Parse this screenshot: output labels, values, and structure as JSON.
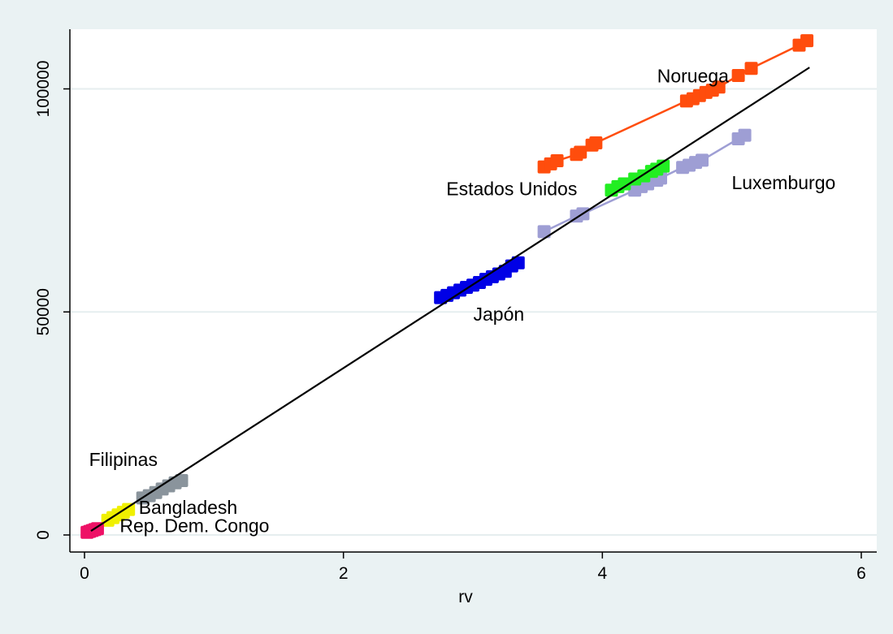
{
  "chart_data": {
    "type": "scatter",
    "title": "",
    "xlabel": "rv",
    "ylabel": "",
    "xlim": [
      -0.15,
      6.1
    ],
    "ylim": [
      -5000,
      113000
    ],
    "x_ticks": [
      0,
      2,
      4,
      6
    ],
    "y_ticks": [
      0,
      50000,
      100000
    ],
    "grid": "horizontal",
    "legend": "none",
    "colors": {
      "background": "#eaf2f3",
      "plot_background": "#ffffff",
      "gridline": "#e6eeef",
      "axis": "#000000"
    },
    "series": [
      {
        "color": "#ff4d0d",
        "connected": true,
        "points": [
          [
            3.55,
            82500
          ],
          [
            3.6,
            83200
          ],
          [
            3.65,
            83900
          ],
          [
            3.8,
            85300
          ],
          [
            3.83,
            85800
          ],
          [
            3.92,
            87400
          ],
          [
            3.95,
            87900
          ],
          [
            4.65,
            97300
          ],
          [
            4.7,
            97800
          ],
          [
            4.75,
            98500
          ],
          [
            4.8,
            99200
          ],
          [
            4.85,
            99700
          ],
          [
            4.9,
            100400
          ],
          [
            5.05,
            103000
          ],
          [
            5.15,
            104600
          ],
          [
            5.52,
            109800
          ],
          [
            5.58,
            110800
          ]
        ]
      },
      {
        "color": "#9e9ed4",
        "connected": true,
        "points": [
          [
            3.55,
            68000
          ],
          [
            3.8,
            71500
          ],
          [
            3.85,
            72000
          ],
          [
            4.25,
            77300
          ],
          [
            4.3,
            78100
          ],
          [
            4.35,
            78700
          ],
          [
            4.42,
            79500
          ],
          [
            4.45,
            80000
          ],
          [
            4.62,
            82400
          ],
          [
            4.67,
            82900
          ],
          [
            4.72,
            83500
          ],
          [
            4.77,
            84000
          ],
          [
            5.05,
            88800
          ],
          [
            5.1,
            89600
          ]
        ]
      },
      {
        "color": "#22ee22",
        "connected": false,
        "points": [
          [
            4.07,
            77300
          ],
          [
            4.12,
            78100
          ],
          [
            4.17,
            78700
          ],
          [
            4.25,
            79800
          ],
          [
            4.32,
            80500
          ],
          [
            4.38,
            81500
          ],
          [
            4.42,
            82000
          ],
          [
            4.47,
            82700
          ]
        ]
      },
      {
        "color": "#0000e6",
        "connected": false,
        "points": [
          [
            2.75,
            53200
          ],
          [
            2.8,
            53700
          ],
          [
            2.85,
            54300
          ],
          [
            2.9,
            54900
          ],
          [
            2.95,
            55500
          ],
          [
            3.0,
            56000
          ],
          [
            3.05,
            56600
          ],
          [
            3.1,
            57300
          ],
          [
            3.15,
            57900
          ],
          [
            3.2,
            58500
          ],
          [
            3.25,
            59100
          ],
          [
            3.3,
            60300
          ],
          [
            3.35,
            61000
          ]
        ]
      },
      {
        "color": "#8a949c",
        "connected": false,
        "points": [
          [
            0.45,
            8300
          ],
          [
            0.5,
            8800
          ],
          [
            0.55,
            9500
          ],
          [
            0.6,
            10300
          ],
          [
            0.65,
            11000
          ],
          [
            0.7,
            11700
          ],
          [
            0.75,
            12200
          ]
        ]
      },
      {
        "color": "#f0f000",
        "connected": false,
        "points": [
          [
            0.18,
            3300
          ],
          [
            0.22,
            3900
          ],
          [
            0.26,
            4500
          ],
          [
            0.3,
            5100
          ],
          [
            0.34,
            5700
          ]
        ]
      },
      {
        "color": "#ee1166",
        "connected": false,
        "points": [
          [
            0.02,
            600
          ],
          [
            0.04,
            800
          ],
          [
            0.06,
            1000
          ],
          [
            0.08,
            1200
          ],
          [
            0.1,
            1400
          ]
        ]
      }
    ],
    "fit_line": {
      "color": "#000000",
      "from": [
        0.05,
        900
      ],
      "to": [
        5.6,
        104800
      ]
    },
    "annotations": [
      {
        "text": "Noruega",
        "x": 4.7,
        "y": 101500
      },
      {
        "text": "Estados Unidos",
        "x": 3.3,
        "y": 76200
      },
      {
        "text": "Luxemburgo",
        "x": 5.4,
        "y": 77500
      },
      {
        "text": "Japón",
        "x": 3.2,
        "y": 48000
      },
      {
        "text": "Filipinas",
        "x": 0.3,
        "y": 15500
      },
      {
        "text": "Bangladesh",
        "x": 0.8,
        "y": 4700
      },
      {
        "text": "Rep. Dem. Congo",
        "x": 0.85,
        "y": 600
      }
    ]
  }
}
